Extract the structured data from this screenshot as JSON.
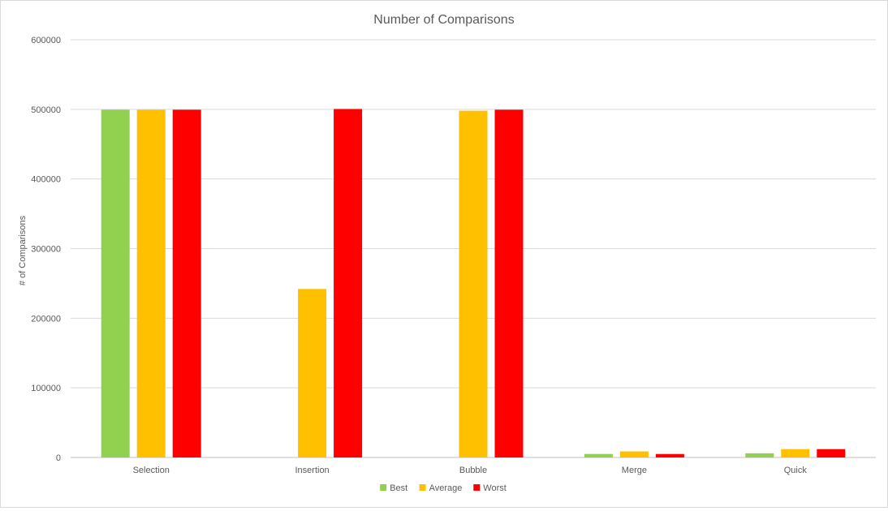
{
  "chart_data": {
    "type": "bar",
    "title": "Number of Comparisons",
    "xlabel": "",
    "ylabel": "# of Comparisons",
    "ylim": [
      0,
      600000
    ],
    "yticks": [
      0,
      100000,
      200000,
      300000,
      400000,
      500000,
      600000
    ],
    "ytick_labels": [
      "0",
      "100000",
      "200000",
      "300000",
      "400000",
      "500000",
      "600000"
    ],
    "categories": [
      "Selection",
      "Insertion",
      "Bubble",
      "Merge",
      "Quick"
    ],
    "series": [
      {
        "name": "Best",
        "color": "#92d050",
        "values": [
          499500,
          0,
          0,
          5000,
          6000
        ]
      },
      {
        "name": "Average",
        "color": "#ffc000",
        "values": [
          499500,
          242000,
          498000,
          8700,
          12000
        ]
      },
      {
        "name": "Worst",
        "color": "#ff0000",
        "values": [
          499500,
          500500,
          499500,
          5000,
          12000
        ]
      }
    ],
    "grid": true,
    "legend_position": "bottom"
  }
}
